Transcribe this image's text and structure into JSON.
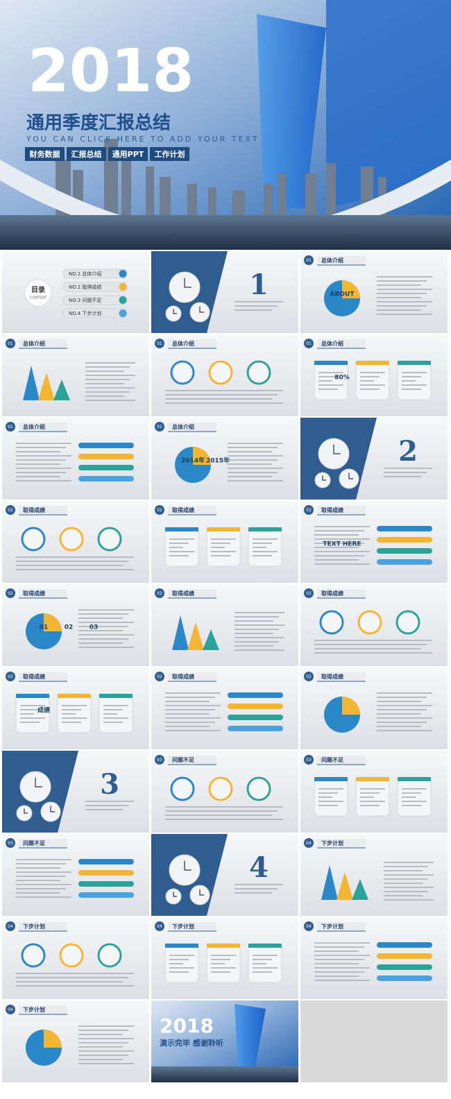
{
  "hero": {
    "year": "2018",
    "title": "通用季度汇报总结",
    "subtitle": "YOU CAN CLICK HERE TO ADD YOUR TEXT",
    "tags": [
      "财务数据",
      "汇报总结",
      "通用PPT",
      "工作计划"
    ]
  },
  "slides": [
    {
      "kind": "toc",
      "title": "目录",
      "subtitle": "CONTENT",
      "items": [
        "NO.1 总体介绍",
        "NO.2 取得成绩",
        "NO.3 问题不足",
        "NO.4 下步计划"
      ]
    },
    {
      "kind": "section",
      "number": "1"
    },
    {
      "kind": "content",
      "badge": "01",
      "title": "总体介绍",
      "labels": [
        "ABOUT"
      ]
    },
    {
      "kind": "content",
      "badge": "01",
      "title": "总体介绍"
    },
    {
      "kind": "content",
      "badge": "01",
      "title": "总体介绍"
    },
    {
      "kind": "content",
      "badge": "01",
      "title": "总体介绍",
      "labels": [
        "80%"
      ]
    },
    {
      "kind": "content",
      "badge": "01",
      "title": "总体介绍"
    },
    {
      "kind": "content",
      "badge": "01",
      "title": "总体介绍",
      "labels": [
        "2014年",
        "2015年"
      ]
    },
    {
      "kind": "section",
      "number": "2"
    },
    {
      "kind": "content",
      "badge": "02",
      "title": "取得成绩"
    },
    {
      "kind": "content",
      "badge": "02",
      "title": "取得成绩"
    },
    {
      "kind": "content",
      "badge": "02",
      "title": "取得成绩",
      "labels": [
        "TEXT HERE"
      ]
    },
    {
      "kind": "content",
      "badge": "02",
      "title": "取得成绩",
      "labels": [
        "01",
        "02",
        "03"
      ]
    },
    {
      "kind": "content",
      "badge": "02",
      "title": "取得成绩"
    },
    {
      "kind": "content",
      "badge": "02",
      "title": "取得成绩"
    },
    {
      "kind": "content",
      "badge": "02",
      "title": "取得成绩",
      "labels": [
        "成绩"
      ]
    },
    {
      "kind": "content",
      "badge": "02",
      "title": "取得成绩"
    },
    {
      "kind": "content",
      "badge": "02",
      "title": "取得成绩"
    },
    {
      "kind": "section",
      "number": "3"
    },
    {
      "kind": "content",
      "badge": "03",
      "title": "问题不足"
    },
    {
      "kind": "content",
      "badge": "03",
      "title": "问题不足"
    },
    {
      "kind": "content",
      "badge": "03",
      "title": "问题不足"
    },
    {
      "kind": "section",
      "number": "4"
    },
    {
      "kind": "content",
      "badge": "04",
      "title": "下步计划"
    },
    {
      "kind": "content",
      "badge": "04",
      "title": "下步计划"
    },
    {
      "kind": "content",
      "badge": "04",
      "title": "下步计划"
    },
    {
      "kind": "content",
      "badge": "04",
      "title": "下步计划"
    },
    {
      "kind": "content",
      "badge": "04",
      "title": "下步计划"
    },
    {
      "kind": "ending",
      "year": "2018",
      "title": "演示完毕 感谢聆听"
    }
  ]
}
